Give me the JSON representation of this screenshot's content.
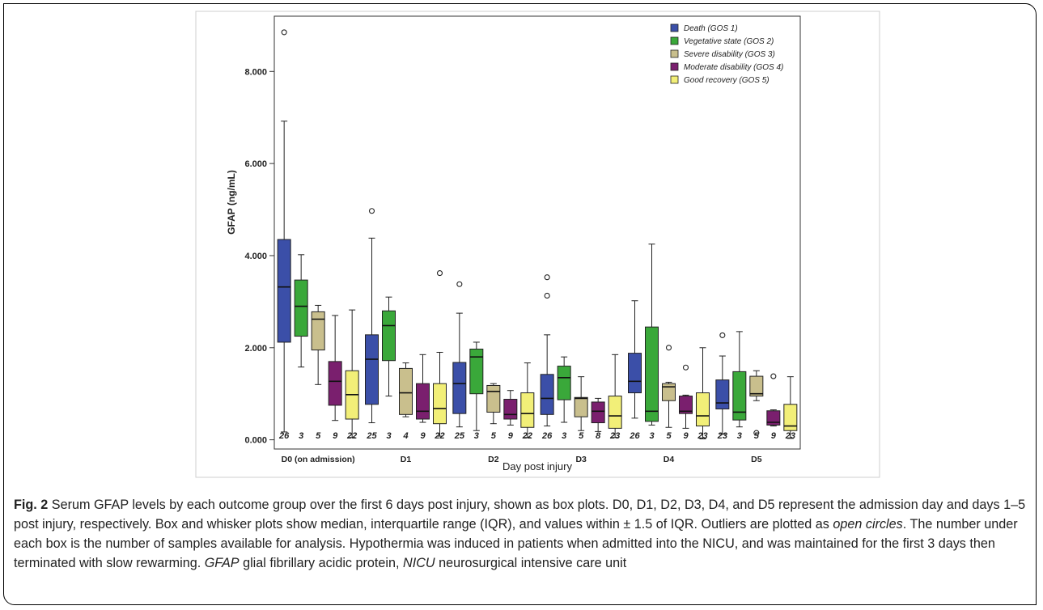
{
  "chart_data": {
    "type": "box",
    "ylabel": "GFAP (ng/mL)",
    "xlabel": "Day post injury",
    "ylim": [
      -0.2,
      9.2
    ],
    "yticks": [
      0,
      2,
      4,
      6,
      8
    ],
    "ytick_labels": [
      "0.000",
      "2.000",
      "4.000",
      "6.000",
      "8.000"
    ],
    "categories": [
      "D0 (on admission)",
      "D1",
      "D2",
      "D3",
      "D4",
      "D5"
    ],
    "grid": false,
    "legend_position": "top-right",
    "series": [
      {
        "name": "Death (GOS 1)",
        "color": "#3b4fa8",
        "n": [
          "26",
          "25",
          "25",
          "26",
          "26",
          "23"
        ],
        "boxes": [
          {
            "min": 0.17,
            "q1": 2.12,
            "median": 3.32,
            "q3": 4.35,
            "max": 6.92,
            "outliers": [
              8.85
            ]
          },
          {
            "min": 0.37,
            "q1": 0.77,
            "median": 1.75,
            "q3": 2.28,
            "max": 4.38,
            "outliers": [
              4.97
            ]
          },
          {
            "min": 0.28,
            "q1": 0.57,
            "median": 1.22,
            "q3": 1.68,
            "max": 2.75,
            "outliers": [
              3.38
            ]
          },
          {
            "min": 0.3,
            "q1": 0.55,
            "median": 0.9,
            "q3": 1.42,
            "max": 2.28,
            "outliers": [
              3.13,
              3.53
            ]
          },
          {
            "min": 0.47,
            "q1": 1.02,
            "median": 1.27,
            "q3": 1.88,
            "max": 3.02,
            "outliers": []
          },
          {
            "min": 0.12,
            "q1": 0.67,
            "median": 0.8,
            "q3": 1.3,
            "max": 1.82,
            "outliers": [
              2.27
            ]
          }
        ]
      },
      {
        "name": "Vegetative state (GOS 2)",
        "color": "#3aa83a",
        "n": [
          "3",
          "3",
          "3",
          "3",
          "3",
          "3"
        ],
        "boxes": [
          {
            "min": 1.58,
            "q1": 2.25,
            "median": 2.9,
            "q3": 3.47,
            "max": 4.02,
            "outliers": []
          },
          {
            "min": 0.95,
            "q1": 1.72,
            "median": 2.48,
            "q3": 2.8,
            "max": 3.1,
            "outliers": []
          },
          {
            "min": 0.2,
            "q1": 1.0,
            "median": 1.8,
            "q3": 1.97,
            "max": 2.12,
            "outliers": []
          },
          {
            "min": 0.38,
            "q1": 0.87,
            "median": 1.35,
            "q3": 1.6,
            "max": 1.8,
            "outliers": []
          },
          {
            "min": 0.32,
            "q1": 0.4,
            "median": 0.62,
            "q3": 2.45,
            "max": 4.25,
            "outliers": []
          },
          {
            "min": 0.28,
            "q1": 0.43,
            "median": 0.6,
            "q3": 1.48,
            "max": 2.35,
            "outliers": []
          }
        ]
      },
      {
        "name": "Severe disability (GOS 3)",
        "color": "#c9bf8d",
        "n": [
          "5",
          "4",
          "5",
          "5",
          "5",
          "5"
        ],
        "boxes": [
          {
            "min": 1.2,
            "q1": 1.95,
            "median": 2.62,
            "q3": 2.78,
            "max": 2.92,
            "outliers": []
          },
          {
            "min": 0.5,
            "q1": 0.55,
            "median": 1.02,
            "q3": 1.55,
            "max": 1.67,
            "outliers": []
          },
          {
            "min": 0.35,
            "q1": 0.6,
            "median": 1.05,
            "q3": 1.18,
            "max": 1.22,
            "outliers": []
          },
          {
            "min": 0.2,
            "q1": 0.5,
            "median": 0.9,
            "q3": 0.92,
            "max": 1.37,
            "outliers": []
          },
          {
            "min": 0.27,
            "q1": 0.85,
            "median": 1.15,
            "q3": 1.22,
            "max": 1.25,
            "outliers": [
              2.0
            ]
          },
          {
            "min": 0.85,
            "q1": 0.95,
            "median": 1.0,
            "q3": 1.38,
            "max": 1.5,
            "outliers": [
              0.15
            ]
          }
        ]
      },
      {
        "name": "Moderate disability (GOS 4)",
        "color": "#7a1f6e",
        "n": [
          "9",
          "9",
          "9",
          "8",
          "9",
          "9"
        ],
        "boxes": [
          {
            "min": 0.42,
            "q1": 0.75,
            "median": 1.27,
            "q3": 1.7,
            "max": 2.7,
            "outliers": []
          },
          {
            "min": 0.38,
            "q1": 0.45,
            "median": 0.62,
            "q3": 1.22,
            "max": 1.85,
            "outliers": []
          },
          {
            "min": 0.32,
            "q1": 0.45,
            "median": 0.55,
            "q3": 0.88,
            "max": 1.07,
            "outliers": []
          },
          {
            "min": 0.18,
            "q1": 0.37,
            "median": 0.62,
            "q3": 0.82,
            "max": 0.9,
            "outliers": []
          },
          {
            "min": 0.25,
            "q1": 0.57,
            "median": 0.62,
            "q3": 0.95,
            "max": 0.97,
            "outliers": [
              1.57
            ]
          },
          {
            "min": 0.3,
            "q1": 0.32,
            "median": 0.38,
            "q3": 0.63,
            "max": 0.65,
            "outliers": [
              1.38
            ]
          }
        ]
      },
      {
        "name": "Good recovery (GOS 5)",
        "color": "#f2ef78",
        "n": [
          "22",
          "22",
          "22",
          "23",
          "23",
          "23"
        ],
        "boxes": [
          {
            "min": 0.05,
            "q1": 0.45,
            "median": 0.98,
            "q3": 1.5,
            "max": 2.82,
            "outliers": []
          },
          {
            "min": 0.08,
            "q1": 0.35,
            "median": 0.68,
            "q3": 1.22,
            "max": 1.9,
            "outliers": [
              3.62
            ]
          },
          {
            "min": 0.05,
            "q1": 0.27,
            "median": 0.57,
            "q3": 1.02,
            "max": 1.67,
            "outliers": []
          },
          {
            "min": 0.05,
            "q1": 0.25,
            "median": 0.52,
            "q3": 0.95,
            "max": 1.85,
            "outliers": []
          },
          {
            "min": 0.02,
            "q1": 0.3,
            "median": 0.52,
            "q3": 1.02,
            "max": 2.0,
            "outliers": []
          },
          {
            "min": 0.03,
            "q1": 0.2,
            "median": 0.3,
            "q3": 0.77,
            "max": 1.37,
            "outliers": []
          }
        ]
      }
    ]
  },
  "caption": {
    "label": "Fig. 2",
    "text_1": " Serum GFAP levels by each outcome group over the first 6 days post injury, shown as box plots. D0, D1, D2, D3, D4, and D5 represent the admission day and days 1–5 post injury, respectively. Box and whisker plots show median, interquartile range (IQR), and values within ± 1.5 of IQR. Outliers are plotted as ",
    "italic_1": "open circles",
    "text_2": ". The number under each box is the number of samples available for analysis. Hypothermia was induced in patients when admitted into the NICU, and was maintained for the first 3 days then terminated with slow rewarming. ",
    "italic_2": "GFAP",
    "text_3": " glial fibrillary acidic protein, ",
    "italic_3": "NICU",
    "text_4": " neurosurgical intensive care unit"
  }
}
